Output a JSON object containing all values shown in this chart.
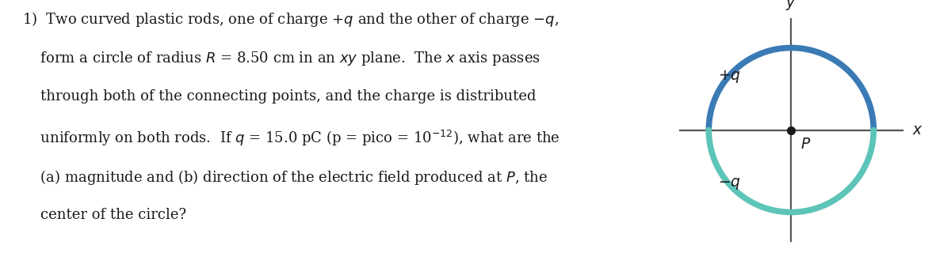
{
  "background_color": "#ffffff",
  "circle_color_top": "#3a7ab5",
  "circle_color_bottom": "#5dc4b8",
  "circle_linewidth": 5.5,
  "axis_color": "#555555",
  "text_lines": [
    "1)  Two curved plastic rods, one of charge $+q$ and the other of charge $-q$,",
    "    form a circle of radius $R$ = 8.50 cm in an $xy$ plane.  The $x$ axis passes",
    "    through both of the connecting points, and the charge is distributed",
    "    uniformly on both rods.  If $q$ = 15.0 pC (p = pico = 10$^{-12}$), what are the",
    "    (a) magnitude and (b) direction of the electric field produced at $P$, the",
    "    center of the circle?"
  ],
  "text_fontsize": 13.0,
  "text_color": "#1a1a1a",
  "plus_q_label": "$+q$",
  "minus_q_label": "$-q$",
  "P_label": "$P$",
  "x_label": "$x$",
  "y_label": "$y$",
  "label_fontsize": 13.5
}
